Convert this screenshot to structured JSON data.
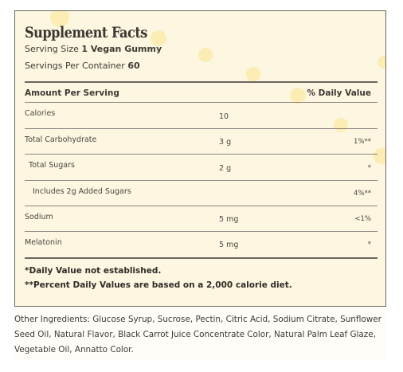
{
  "panel": {
    "title": "Supplement Facts",
    "serving_size_label": "Serving Size",
    "serving_size_value": "1 Vegan Gummy",
    "servings_label": "Servings Per Container",
    "servings_value": "60",
    "header_amount": "Amount Per Serving",
    "header_dv": "% Daily Value",
    "rows": [
      {
        "label": "Calories",
        "amount": "10",
        "dv": ""
      },
      {
        "label": "Total Carbohydrate",
        "amount": "3 g",
        "dv": "1%**"
      },
      {
        "label": "Total Sugars",
        "amount": "2 g",
        "dv": "*"
      },
      {
        "label": "Includes 2g Added Sugars",
        "amount": "",
        "dv": "4%**"
      },
      {
        "label": "Sodium",
        "amount": "5 mg",
        "dv": "<1%"
      },
      {
        "label": "Melatonin",
        "amount": "5 mg",
        "dv": "*"
      }
    ],
    "footnote_1": "*Daily Value not established.",
    "footnote_2": "**Percent Daily Values are based on a 2,000 calorie diet."
  },
  "other_ingredients": "Other Ingredients: Glucose Syrup, Sucrose, Pectin, Citric Acid, Sodium Citrate, Sunflower Seed Oil, Natural Flavor, Black Carrot Juice Concentrate Color, Natural Palm Leaf Glaze, Vegetable Oil, Annatto Color.",
  "colors": {
    "panel_bg": "#fdf6e1",
    "rule": "#6b6761",
    "dot": "#fbe9a6"
  }
}
